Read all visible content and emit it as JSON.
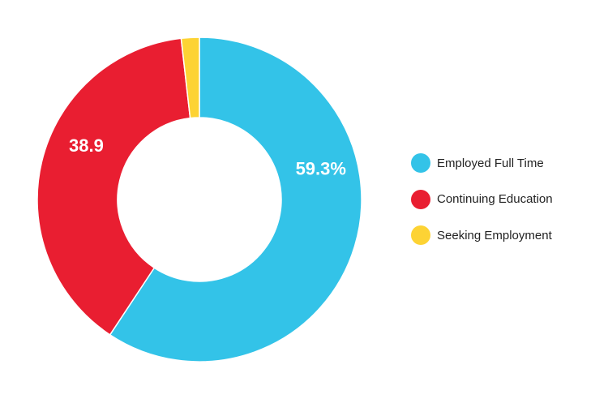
{
  "chart_data": {
    "type": "pie",
    "donut": true,
    "title": "",
    "categories": [
      "Employed Full Time",
      "Continuing Education",
      "Seeking Employment"
    ],
    "values": [
      59.3,
      38.9,
      1.8
    ],
    "colors": [
      "#33C3E8",
      "#E91E31",
      "#FDD334"
    ],
    "data_labels": [
      "59.3%",
      "38.9",
      ""
    ],
    "legend_position": "right"
  }
}
